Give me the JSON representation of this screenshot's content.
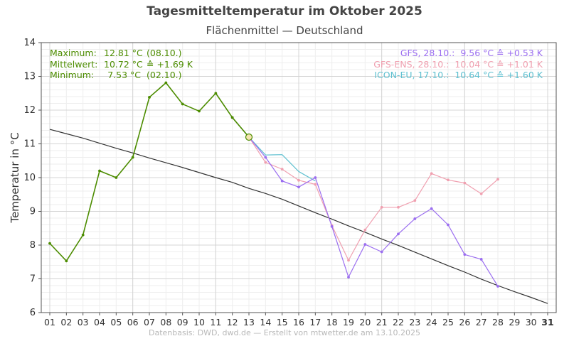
{
  "header": {
    "title": "Tagesmitteltemperatur im Oktober 2025",
    "subtitle": "Flächenmittel — Deutschland",
    "source": "Datenbasis: DWD, dwd.de — Erstellt von mtwetter.de am 13.10.2025"
  },
  "stats": {
    "max_label": "Maximum:",
    "max_value": "12.81 °C",
    "max_extra": "(08.10.)",
    "mean_label": "Mittelwert:",
    "mean_value": "10.72 °C",
    "mean_extra": "≙ +1.69 K",
    "min_label": "Minimum:",
    "min_value": "7.53 °C",
    "min_extra": "(02.10.)"
  },
  "models": [
    {
      "text": "GFS, 28.10.:  9.56 °C ≙ +0.53 K",
      "color": "#9b6ef0"
    },
    {
      "text": "GFS-ENS, 28.10.:  10.04 °C ≙ +1.01 K",
      "color": "#f0a0b0"
    },
    {
      "text": "ICON-EU, 17.10.:  10.64 °C ≙ +1.60 K",
      "color": "#5fc0d0"
    }
  ],
  "chart_data": {
    "type": "line",
    "title": "Tagesmitteltemperatur im Oktober 2025",
    "subtitle": "Flächenmittel — Deutschland",
    "xlabel": "",
    "ylabel": "Temperatur in °C",
    "xlim": [
      1,
      31
    ],
    "ylim": [
      6,
      14
    ],
    "x_ticks": [
      "01",
      "02",
      "03",
      "04",
      "05",
      "06",
      "07",
      "08",
      "09",
      "10",
      "11",
      "12",
      "13",
      "14",
      "15",
      "16",
      "17",
      "18",
      "19",
      "20",
      "21",
      "22",
      "23",
      "24",
      "25",
      "26",
      "27",
      "28",
      "29",
      "30",
      "31"
    ],
    "y_ticks": [
      6,
      7,
      8,
      9,
      10,
      11,
      12,
      13,
      14
    ],
    "grid": true,
    "current_point": {
      "x": 13,
      "y": 11.2
    },
    "series": [
      {
        "color": "#4c8c00",
        "marker": true,
        "x": [
          1,
          2,
          3,
          4,
          5,
          6,
          7,
          8,
          9,
          10,
          11,
          12,
          13
        ],
        "y": [
          8.05,
          7.53,
          8.3,
          10.2,
          10.0,
          10.6,
          12.38,
          12.81,
          12.18,
          11.97,
          12.5,
          11.78,
          11.2
        ]
      },
      {
        "color": "#9b6ef0",
        "marker": true,
        "x": [
          12,
          13,
          14,
          15,
          16,
          17,
          18,
          19,
          20,
          21,
          22,
          23,
          24,
          25,
          26,
          27,
          28
        ],
        "y": [
          11.78,
          11.2,
          10.6,
          9.9,
          9.72,
          10.0,
          8.55,
          7.05,
          8.02,
          7.8,
          8.33,
          8.78,
          9.08,
          8.6,
          7.72,
          7.58,
          6.78
        ]
      },
      {
        "color": "#f0a0b0",
        "marker": true,
        "x": [
          12,
          13,
          14,
          15,
          16,
          17,
          18,
          19,
          20,
          21,
          22,
          23,
          24,
          25,
          26,
          27,
          28
        ],
        "y": [
          11.78,
          11.2,
          10.45,
          10.25,
          9.92,
          9.8,
          8.58,
          7.55,
          8.45,
          9.12,
          9.12,
          9.32,
          10.12,
          9.93,
          9.84,
          9.52,
          9.95
        ]
      },
      {
        "color": "#5fc0d0",
        "marker": false,
        "x": [
          12,
          13,
          14,
          15,
          16,
          17
        ],
        "y": [
          11.78,
          11.2,
          10.67,
          10.68,
          10.18,
          9.9
        ]
      },
      {
        "color": "#333333",
        "marker": false,
        "x": [
          1,
          2,
          3,
          4,
          5,
          6,
          7,
          8,
          9,
          10,
          11,
          12,
          13,
          14,
          15,
          16,
          17,
          18,
          19,
          20,
          21,
          22,
          23,
          24,
          25,
          26,
          27,
          28,
          29,
          30,
          31
        ],
        "y": [
          11.43,
          11.3,
          11.17,
          11.02,
          10.87,
          10.73,
          10.58,
          10.44,
          10.3,
          10.15,
          10.0,
          9.86,
          9.68,
          9.53,
          9.36,
          9.16,
          8.96,
          8.77,
          8.57,
          8.38,
          8.18,
          7.99,
          7.79,
          7.59,
          7.39,
          7.2,
          6.99,
          6.8,
          6.62,
          6.45,
          6.27
        ]
      }
    ]
  }
}
